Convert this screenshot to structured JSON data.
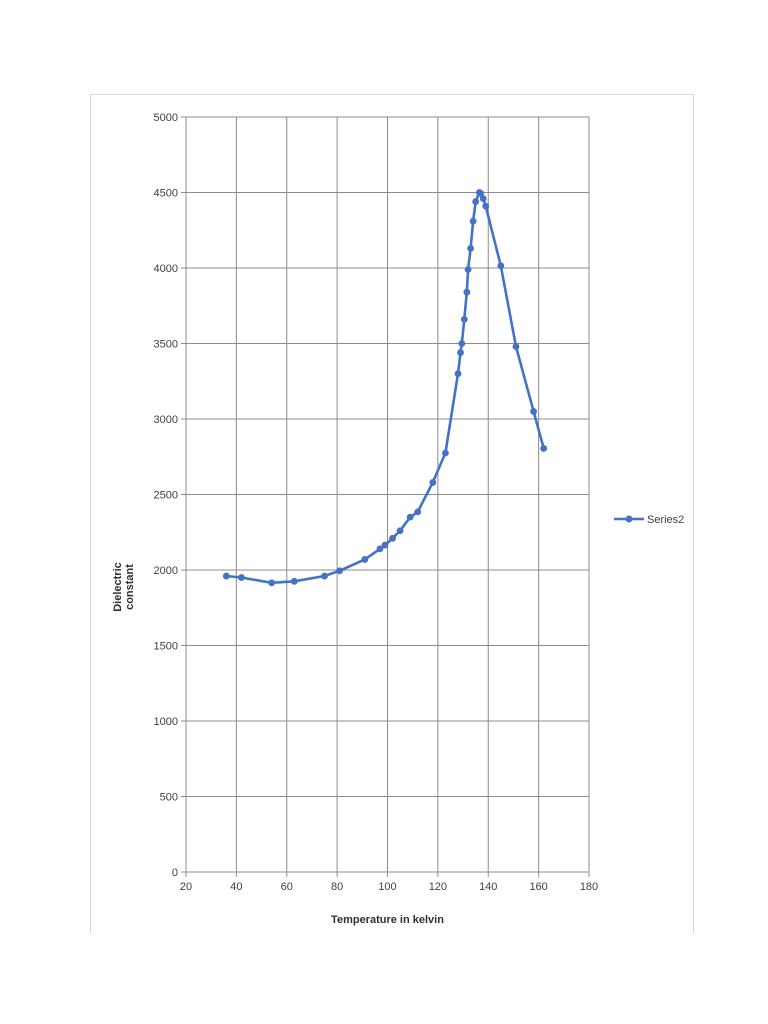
{
  "chart_data": {
    "type": "line",
    "title": "",
    "xlabel": "Temperature in kelvin",
    "ylabel": "Dielectric constant",
    "xlim": [
      20,
      180
    ],
    "ylim": [
      0,
      5000
    ],
    "xticks": [
      20,
      40,
      60,
      80,
      100,
      120,
      140,
      160,
      180
    ],
    "yticks": [
      0,
      500,
      1000,
      1500,
      2000,
      2500,
      3000,
      3500,
      4000,
      4500,
      5000
    ],
    "grid": true,
    "legend": "right",
    "series_color": "#4472c4",
    "series": [
      {
        "name": "Series2",
        "x": [
          36,
          42,
          54,
          63,
          75,
          81,
          91,
          97,
          99,
          102,
          105,
          109,
          112,
          118,
          123,
          128,
          129,
          129.5,
          130.5,
          131.5,
          132,
          133,
          134,
          135,
          136.5,
          137,
          138,
          139,
          145,
          151,
          158,
          162
        ],
        "y": [
          1960,
          1950,
          1915,
          1925,
          1960,
          1995,
          2070,
          2140,
          2165,
          2210,
          2260,
          2350,
          2385,
          2580,
          2775,
          3300,
          3440,
          3500,
          3660,
          3840,
          3990,
          4130,
          4310,
          4440,
          4500,
          4495,
          4460,
          4410,
          4015,
          3480,
          3050,
          2805
        ]
      }
    ]
  }
}
